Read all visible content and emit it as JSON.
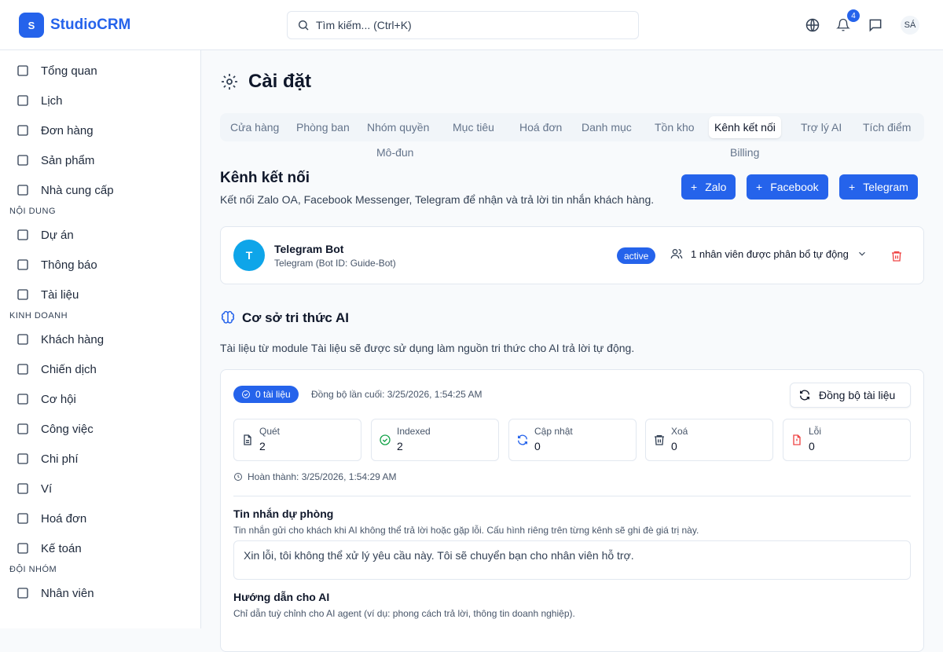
{
  "header": {
    "logo_letter": "S",
    "brand": "StudioCRM",
    "search_placeholder": "Tìm kiếm... (Ctrl+K)",
    "notification_count": "4",
    "avatar": "SÁ"
  },
  "sidebar": {
    "items": [
      {
        "label": "Tổng quan",
        "icon": "dashboard-icon"
      },
      {
        "label": "Lịch",
        "icon": "calendar-icon"
      },
      {
        "label": "Đơn hàng",
        "icon": "cart-icon"
      },
      {
        "label": "Sản phẩm",
        "icon": "package-icon"
      },
      {
        "label": "Nhà cung cấp",
        "icon": "building-icon"
      }
    ],
    "sections": [
      {
        "title": "NỘI DUNG",
        "items": [
          {
            "label": "Dự án"
          },
          {
            "label": "Thông báo"
          },
          {
            "label": "Tài liệu"
          }
        ]
      },
      {
        "title": "KINH DOANH",
        "items": [
          {
            "label": "Khách hàng"
          },
          {
            "label": "Chiến dịch"
          },
          {
            "label": "Cơ hội"
          },
          {
            "label": "Công việc"
          },
          {
            "label": "Chi phí"
          },
          {
            "label": "Ví"
          },
          {
            "label": "Hoá đơn"
          },
          {
            "label": "Kế toán"
          }
        ]
      },
      {
        "title": "ĐỘI NHÓM",
        "items": [
          {
            "label": "Nhân viên"
          }
        ]
      }
    ]
  },
  "page": {
    "title": "Cài đặt",
    "tabs": [
      "Cửa hàng",
      "Phòng ban",
      "Nhóm quyền",
      "Mục tiêu",
      "Hoá đơn",
      "Danh mục",
      "Tồn kho",
      "Kênh kết nối",
      "Trợ lý AI",
      "Tích điểm",
      "Mô-đun",
      "Billing"
    ],
    "active_tab": "Kênh kết nối"
  },
  "channels": {
    "title": "Kênh kết nối",
    "description": "Kết nối Zalo OA, Facebook Messenger, Telegram để nhận và trả lời tin nhắn khách hàng.",
    "buttons": [
      "Zalo",
      "Facebook",
      "Telegram"
    ],
    "bot": {
      "avatar": "T",
      "name": "Telegram Bot",
      "detail": "Telegram (Bot ID: Guide-Bot)",
      "status": "active",
      "assignment": "1 nhân viên được phân bổ tự động"
    }
  },
  "knowledge": {
    "title": "Cơ sở tri thức AI",
    "description": "Tài liệu từ module Tài liệu sẽ được sử dụng làm nguồn tri thức cho AI trả lời tự động.",
    "doc_badge": "0 tài liệu",
    "last_sync": "Đồng bộ lần cuối: 3/25/2026, 1:54:25 AM",
    "sync_button": "Đồng bộ tài liệu",
    "stats": [
      {
        "label": "Quét",
        "value": "2"
      },
      {
        "label": "Indexed",
        "value": "2"
      },
      {
        "label": "Cập nhật",
        "value": "0"
      },
      {
        "label": "Xoá",
        "value": "0"
      },
      {
        "label": "Lỗi",
        "value": "0"
      }
    ],
    "completed": "Hoàn thành: 3/25/2026, 1:54:29 AM",
    "fallback_label": "Tin nhắn dự phòng",
    "fallback_help": "Tin nhắn gửi cho khách khi AI không thể trả lời hoặc gặp lỗi. Cấu hình riêng trên từng kênh sẽ ghi đè giá trị này.",
    "fallback_value": "Xin lỗi, tôi không thể xử lý yêu cầu này. Tôi sẽ chuyển bạn cho nhân viên hỗ trợ.",
    "guide_label": "Hướng dẫn cho AI",
    "guide_help": "Chỉ dẫn tuỳ chỉnh cho AI agent (ví dụ: phong cách trả lời, thông tin doanh nghiệp)."
  },
  "colors": {
    "primary": "#2563eb",
    "danger": "#ef4444",
    "success": "#16a34a",
    "telegram": "#0ea5e9"
  }
}
